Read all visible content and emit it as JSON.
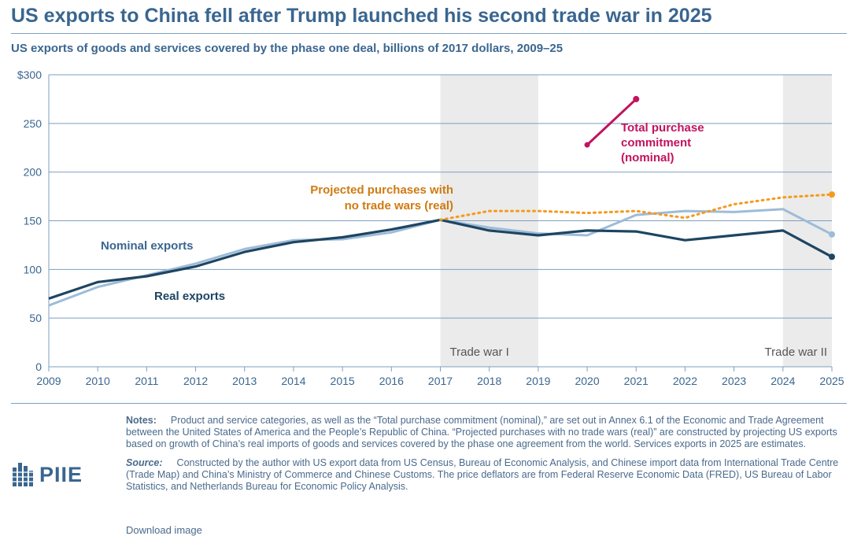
{
  "title": "US exports to China fell after Trump launched his second trade war in 2025",
  "subtitle": "US exports of goods and services covered by the phase one deal, billions of 2017 dollars, 2009–25",
  "colors": {
    "nominal": "#9dbcd8",
    "real": "#1e4562",
    "projected": "#f59a1f",
    "commitment": "#c2135e",
    "shade": "#ebebeb",
    "grid": "#7e9fbf",
    "text": "#3a6690"
  },
  "chart_data": {
    "type": "line",
    "title": "US exports to China fell after Trump launched his second trade war in 2025",
    "xlabel": "",
    "ylabel": "billions of 2017 dollars",
    "ylim": [
      0,
      300
    ],
    "yticks": [
      0,
      50,
      100,
      150,
      200,
      250,
      300
    ],
    "ytick_labels": [
      "0",
      "50",
      "100",
      "150",
      "200",
      "250",
      "$300"
    ],
    "x": [
      2009,
      2010,
      2011,
      2012,
      2013,
      2014,
      2015,
      2016,
      2017,
      2018,
      2019,
      2020,
      2021,
      2022,
      2023,
      2024,
      2025
    ],
    "shaded_periods": [
      {
        "label": "Trade war I",
        "start": 2017,
        "end": 2019
      },
      {
        "label": "Trade war II",
        "start": 2024,
        "end": 2025
      }
    ],
    "series": [
      {
        "name": "Nominal exports",
        "x": [
          2009,
          2010,
          2011,
          2012,
          2013,
          2014,
          2015,
          2016,
          2017,
          2018,
          2019,
          2020,
          2021,
          2022,
          2023,
          2024,
          2025
        ],
        "values": [
          63,
          82,
          94,
          106,
          121,
          130,
          131,
          138,
          151,
          143,
          137,
          135,
          156,
          160,
          159,
          162,
          136
        ],
        "style": "solid",
        "end_marker": true
      },
      {
        "name": "Real exports",
        "x": [
          2009,
          2010,
          2011,
          2012,
          2013,
          2014,
          2015,
          2016,
          2017,
          2018,
          2019,
          2020,
          2021,
          2022,
          2023,
          2024,
          2025
        ],
        "values": [
          70,
          87,
          93,
          103,
          118,
          128,
          133,
          141,
          151,
          140,
          135,
          140,
          139,
          130,
          135,
          140,
          113
        ],
        "style": "solid",
        "end_marker": true
      },
      {
        "name": "Projected purchases with no trade wars (real)",
        "x": [
          2017,
          2018,
          2019,
          2020,
          2021,
          2022,
          2023,
          2024,
          2025
        ],
        "values": [
          151,
          160,
          160,
          158,
          160,
          153,
          167,
          174,
          177
        ],
        "style": "dotted",
        "end_marker": true
      },
      {
        "name": "Total purchase commitment (nominal)",
        "x": [
          2020,
          2021
        ],
        "values": [
          228,
          275
        ],
        "style": "solid",
        "end_marker": true
      }
    ],
    "annotations": {
      "nominal": "Nominal exports",
      "real": "Real exports",
      "projected_line1": "Projected purchases with",
      "projected_line2": "no trade wars (real)",
      "commitment_line1": "Total purchase",
      "commitment_line2": "commitment",
      "commitment_line3": "(nominal)"
    }
  },
  "notes": {
    "label": "Notes:",
    "text": "Product and service categories, as well as the “Total purchase commitment (nominal),” are set out in Annex 6.1 of the Economic and Trade Agreement between the United States of America and the People’s Republic of China. “Projected purchases with no trade wars (real)” are constructed by projecting US exports based on growth of China’s real imports of goods and services covered by the phase one agreement from the world. Services exports in 2025 are estimates."
  },
  "source": {
    "label": "Source:",
    "text": "Constructed by the author with US export data from US Census, Bureau of Economic Analysis, and Chinese import data from International Trade Centre (Trade Map) and China’s Ministry of Commerce and Chinese Customs. The price deflators are from Federal Reserve Economic Data (FRED), US Bureau of Labor Statistics, and Netherlands Bureau for Economic Policy Analysis."
  },
  "download": "Download image",
  "logo": {
    "text": "PIIE",
    "icon": "piie-logo-icon"
  }
}
